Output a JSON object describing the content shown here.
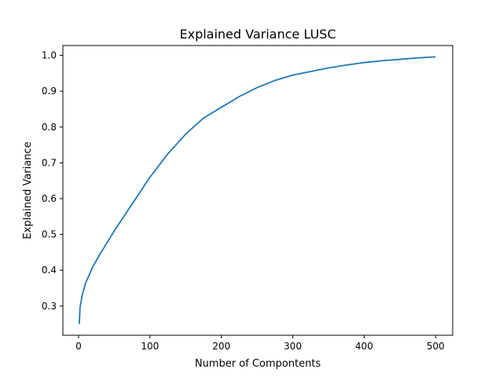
{
  "chart_data": {
    "type": "line",
    "title": "Explained Variance LUSC",
    "xlabel": "Number of Compontents",
    "ylabel": "Explained Variance",
    "xlim": [
      -22,
      524
    ],
    "ylim": [
      0.2185,
      1.0275
    ],
    "xticks": [
      0,
      100,
      200,
      300,
      400,
      500
    ],
    "yticks": [
      0.3,
      0.4,
      0.5,
      0.6,
      0.7,
      0.8,
      0.9,
      1.0
    ],
    "xtick_labels": [
      "0",
      "100",
      "200",
      "300",
      "400",
      "500"
    ],
    "ytick_labels": [
      "0.3",
      "0.4",
      "0.5",
      "0.6",
      "0.7",
      "0.8",
      "0.9",
      "1.0"
    ],
    "grid": false,
    "legend": "none",
    "series": [
      {
        "color": "#1f77b4",
        "x": [
          1,
          2,
          5,
          10,
          20,
          30,
          50,
          75,
          100,
          125,
          150,
          175,
          200,
          225,
          250,
          275,
          300,
          325,
          350,
          375,
          400,
          425,
          450,
          475,
          500
        ],
        "y": [
          0.25,
          0.295,
          0.33,
          0.365,
          0.41,
          0.445,
          0.51,
          0.585,
          0.66,
          0.725,
          0.78,
          0.825,
          0.855,
          0.885,
          0.91,
          0.93,
          0.945,
          0.955,
          0.965,
          0.973,
          0.98,
          0.985,
          0.989,
          0.993,
          0.996
        ]
      }
    ]
  }
}
